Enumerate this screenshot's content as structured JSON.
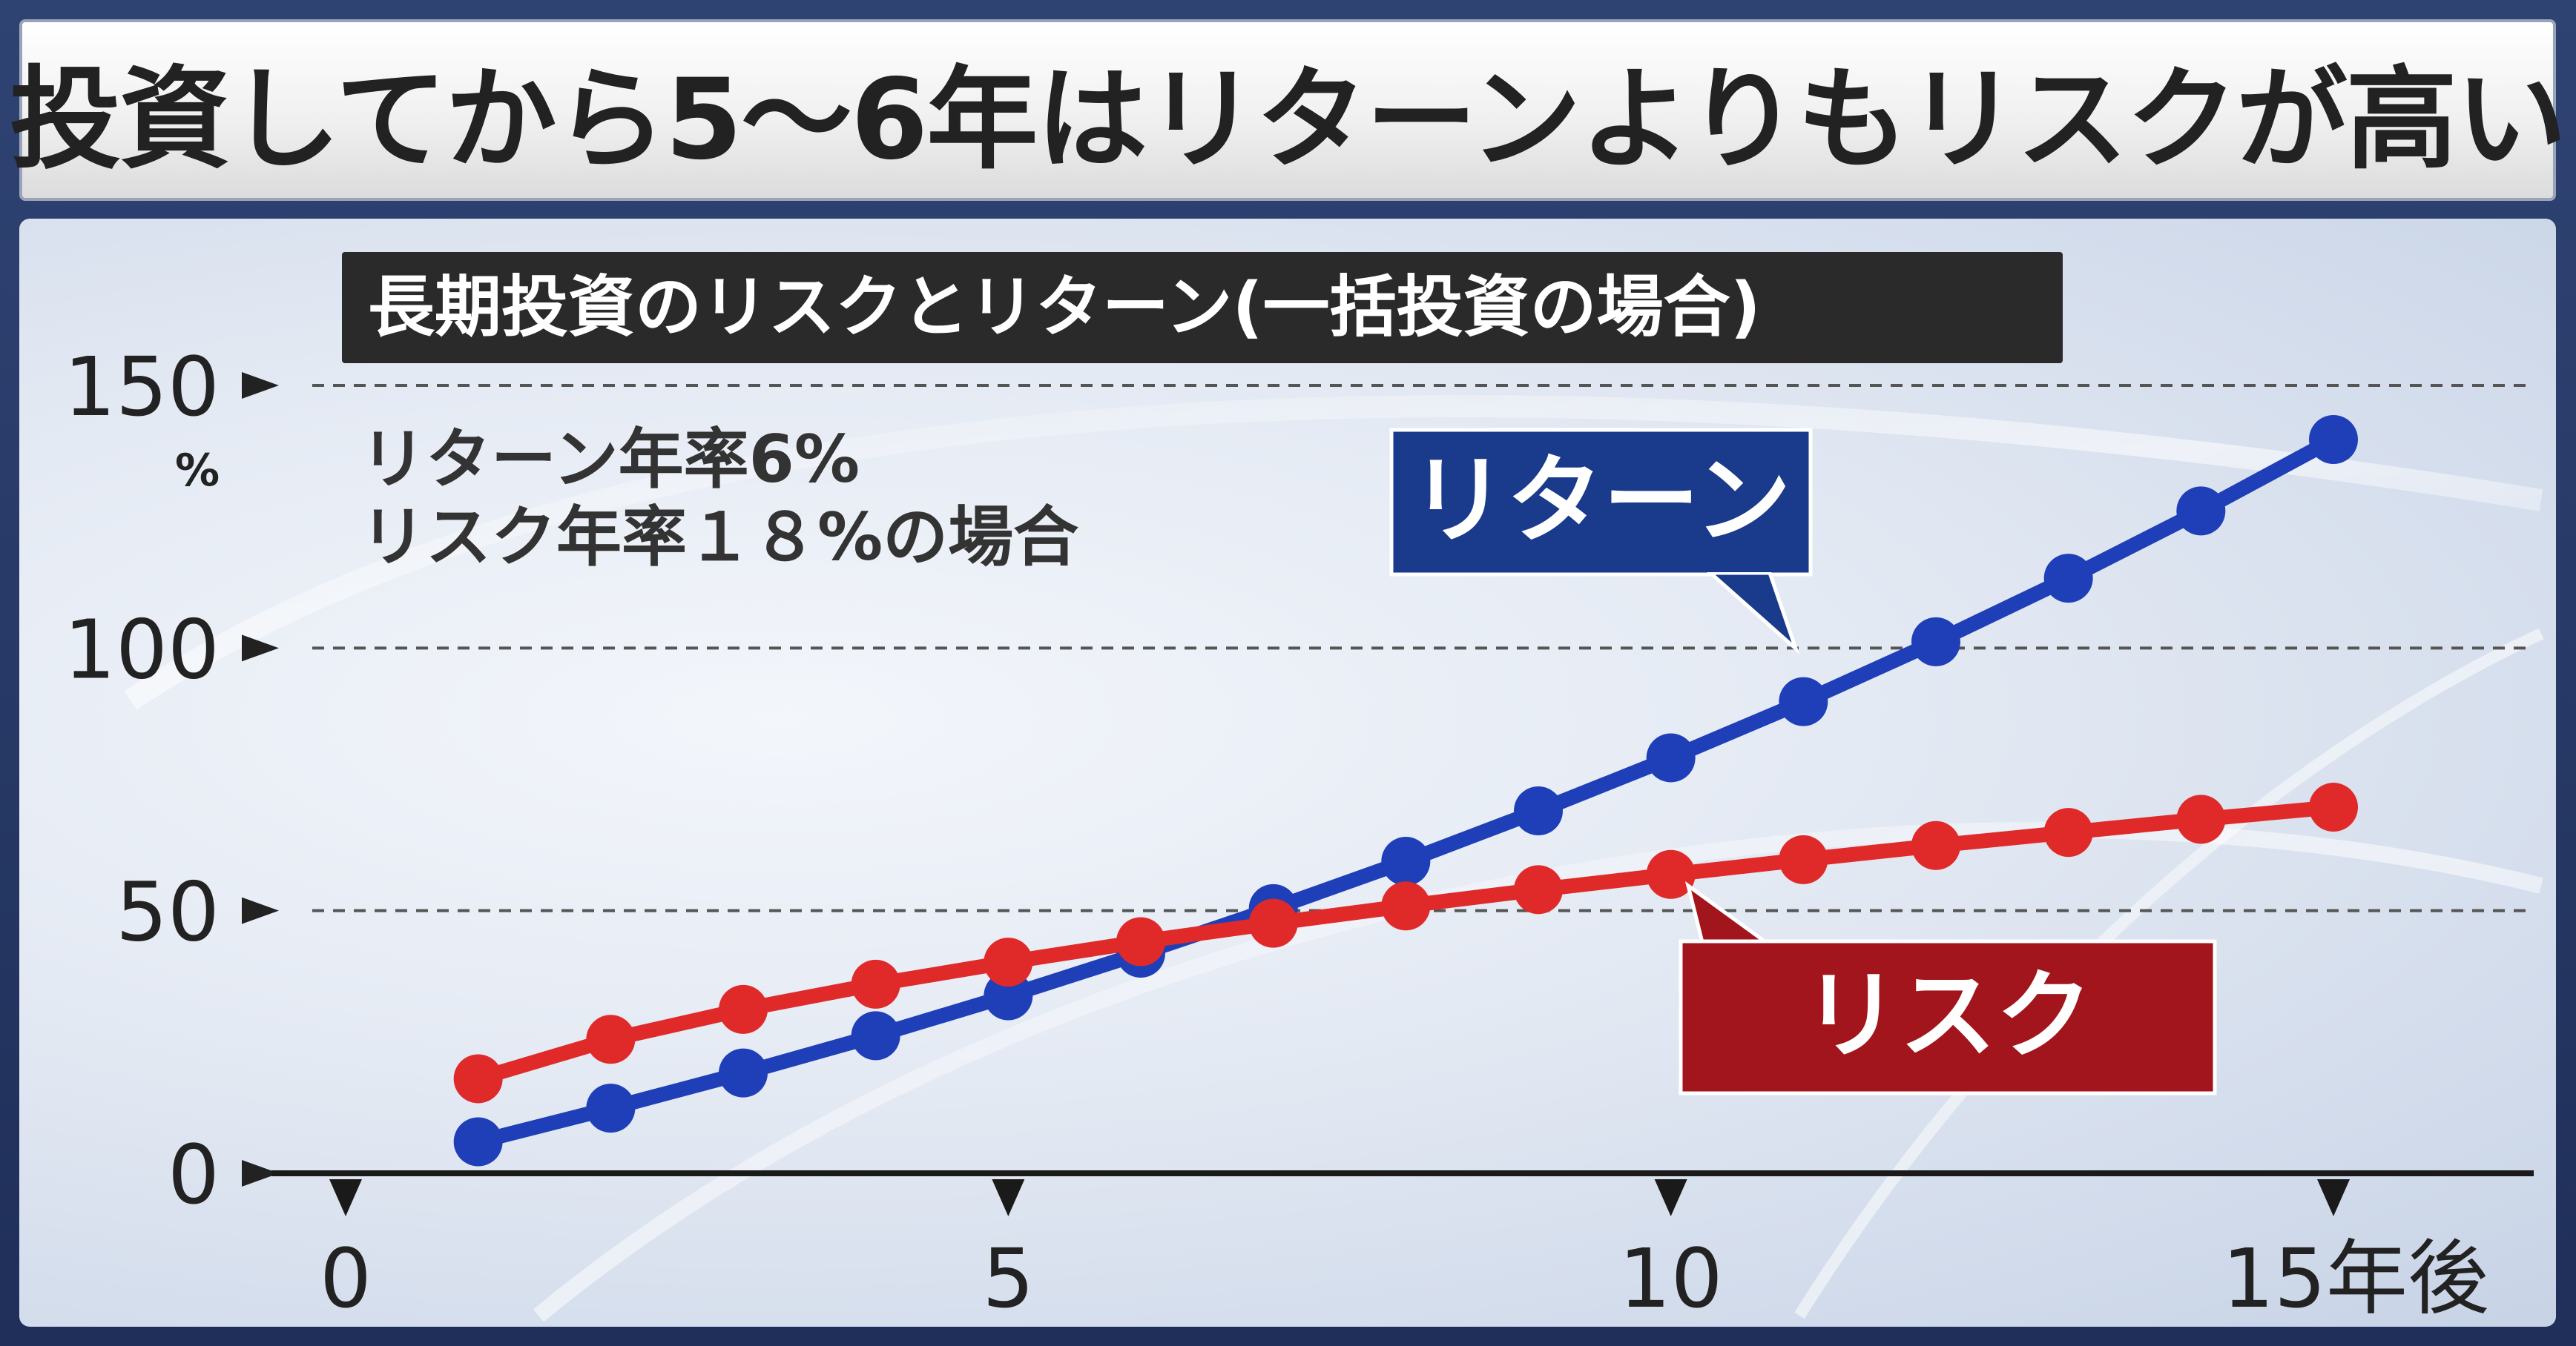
{
  "title": "投資してから5～6年はリターンよりもリスクが高い",
  "chart_data": {
    "type": "line",
    "subtitle": "長期投資のリスクとリターン(一括投資の場合)",
    "note_lines": [
      "リターン年率6%",
      "リスク年率１８%の場合"
    ],
    "y_unit": "%",
    "x_last_label": "15年後",
    "xlim": [
      0,
      15
    ],
    "ylim": [
      0,
      150
    ],
    "x_ticks": [
      0,
      5,
      10,
      15
    ],
    "y_ticks": [
      0,
      50,
      100,
      150
    ],
    "grid": "horizontal dashed",
    "x": [
      1,
      2,
      3,
      4,
      5,
      6,
      7,
      8,
      9,
      10,
      11,
      12,
      13,
      14,
      15
    ],
    "series": [
      {
        "name": "リターン",
        "color": "#1f3fb8",
        "label_bg": "#1a3a8c",
        "values": [
          6,
          12.4,
          19.1,
          26.2,
          33.8,
          41.9,
          50.4,
          59.4,
          69,
          79.1,
          89.8,
          101.2,
          113.3,
          126.1,
          139.7
        ]
      },
      {
        "name": "リスク",
        "color": "#e02a2a",
        "label_bg": "#a3151c",
        "values": [
          18,
          25.5,
          31.2,
          36,
          40.2,
          44.1,
          47.6,
          50.9,
          54,
          56.9,
          59.7,
          62.4,
          64.9,
          67.4,
          69.7
        ]
      }
    ]
  }
}
